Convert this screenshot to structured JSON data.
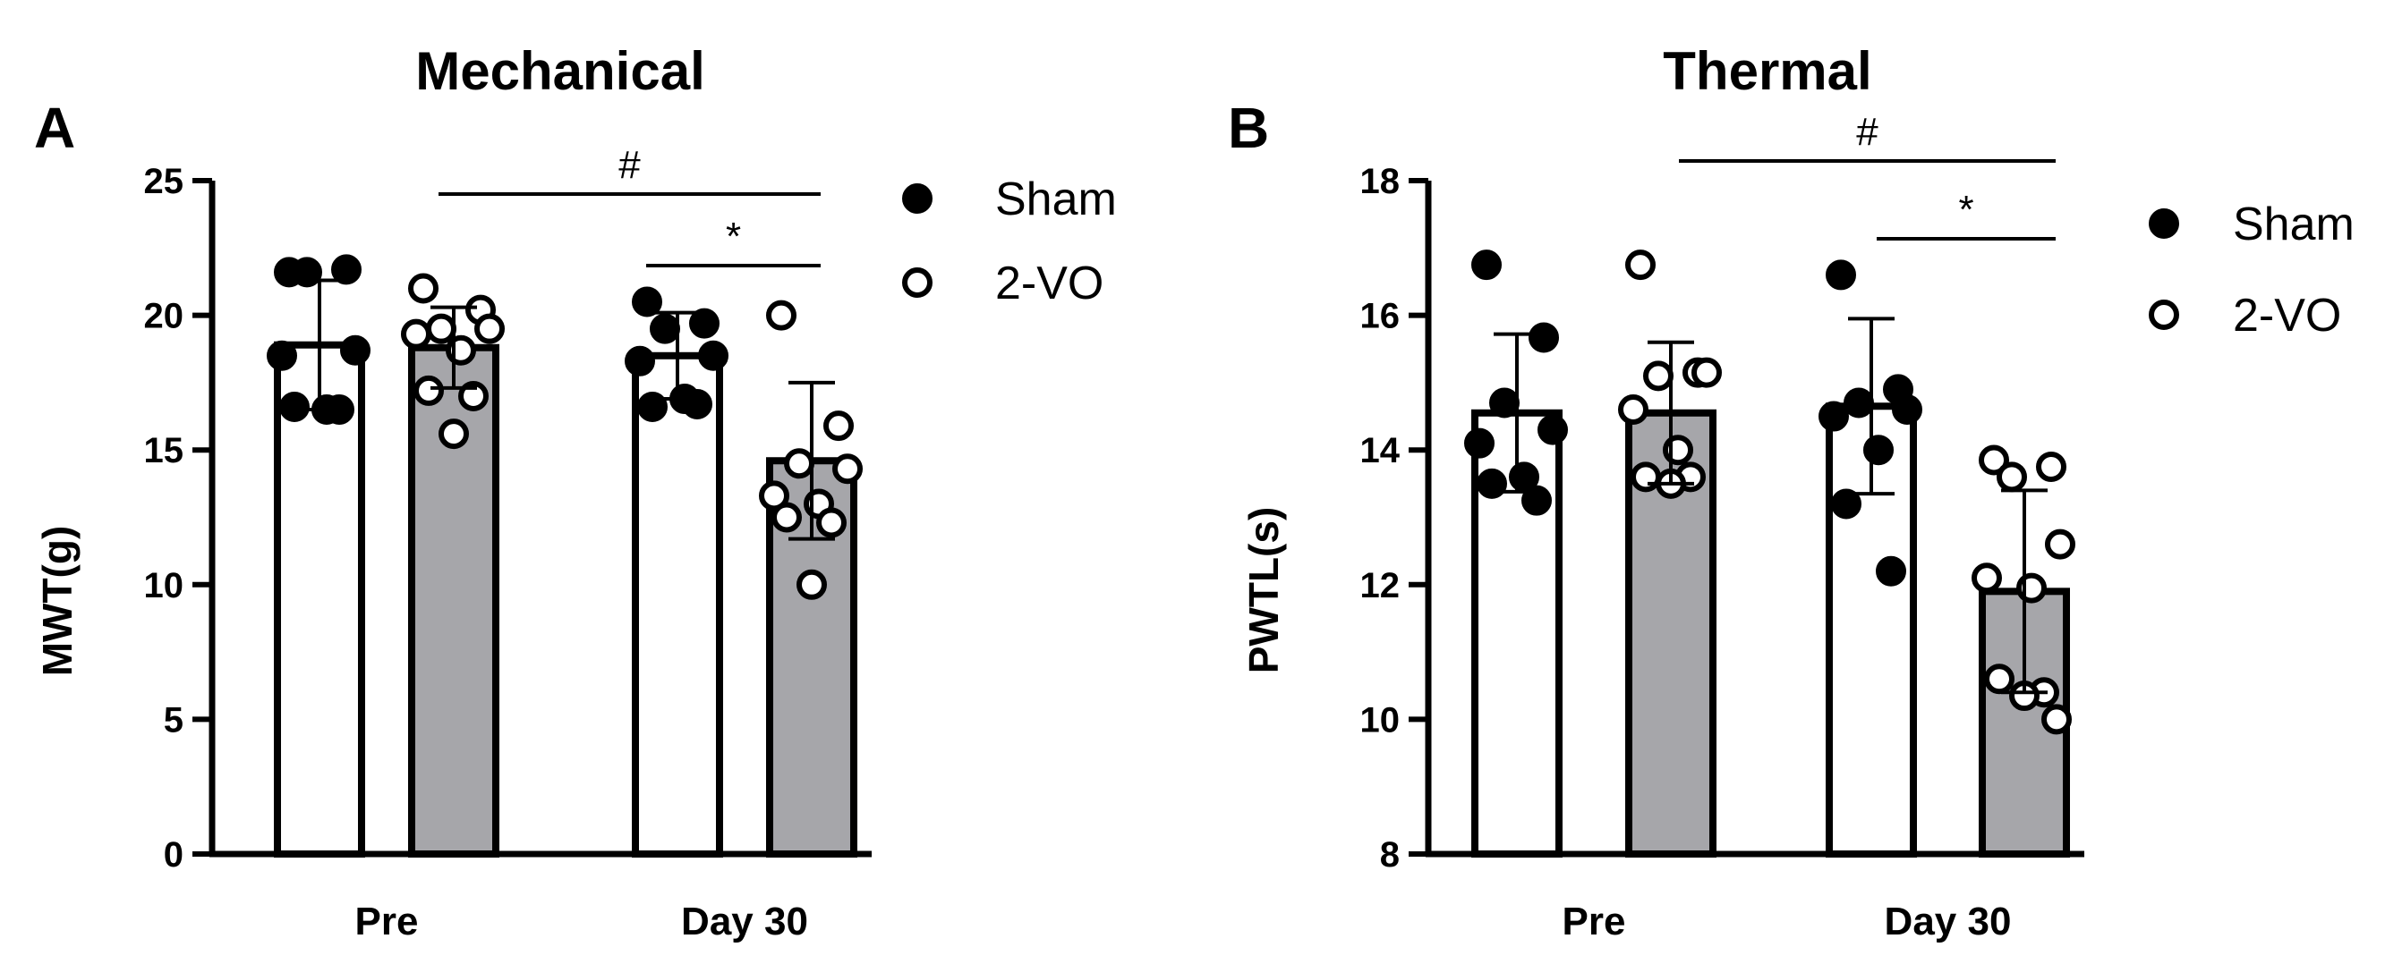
{
  "figure": {
    "legend": {
      "items": [
        {
          "label": "Sham",
          "marker": "filled-circle"
        },
        {
          "label": "2-VO",
          "marker": "open-circle"
        }
      ],
      "placement": "right"
    }
  },
  "colors": {
    "sham_bar": "#ffffff",
    "vo_bar": "#a6a6aa",
    "ink": "#000000"
  },
  "chart_data": [
    {
      "type": "bar",
      "panel": "A",
      "title": "Mechanical",
      "xlabel": "",
      "ylabel": "MWT(g)",
      "ylim": [
        0,
        25
      ],
      "yticks": [
        0,
        5,
        10,
        15,
        20,
        25
      ],
      "categories": [
        "Pre",
        "Day 30"
      ],
      "series": [
        {
          "name": "Sham",
          "values": [
            18.9,
            18.5
          ],
          "sd": [
            2.4,
            1.6
          ],
          "points": [
            [
              21.6,
              21.7,
              21.6,
              18.7,
              18.5,
              16.5,
              16.6,
              16.5
            ],
            [
              20.5,
              19.7,
              19.5,
              18.5,
              18.3,
              16.9,
              16.6,
              16.7
            ]
          ]
        },
        {
          "name": "2-VO",
          "values": [
            18.8,
            14.6
          ],
          "sd": [
            1.5,
            2.9
          ],
          "points": [
            [
              21.0,
              20.2,
              19.5,
              19.5,
              19.3,
              18.7,
              17.2,
              17.0,
              15.6
            ],
            [
              20.0,
              15.9,
              14.5,
              14.3,
              13.3,
              13.0,
              12.5,
              12.3,
              10.0
            ]
          ]
        }
      ],
      "significance": [
        {
          "label": "#",
          "from": "Pre 2-VO",
          "to": "Day 30 2-VO"
        },
        {
          "label": "*",
          "from": "Day 30 Sham",
          "to": "Day 30 2-VO"
        }
      ]
    },
    {
      "type": "bar",
      "panel": "B",
      "title": "Thermal",
      "xlabel": "",
      "ylabel": "PWTL(s)",
      "ylim": [
        8,
        18
      ],
      "yticks": [
        8,
        10,
        12,
        14,
        16,
        18
      ],
      "categories": [
        "Pre",
        "Day 30"
      ],
      "series": [
        {
          "name": "Sham",
          "values": [
            14.55,
            14.65
          ],
          "sd": [
            1.17,
            1.3
          ],
          "points": [
            [
              16.75,
              15.67,
              14.7,
              14.3,
              14.1,
              13.6,
              13.5,
              13.25
            ],
            [
              16.6,
              14.9,
              14.7,
              14.6,
              14.5,
              14.0,
              13.2,
              12.2
            ]
          ]
        },
        {
          "name": "2-VO",
          "values": [
            14.55,
            11.9
          ],
          "sd": [
            1.05,
            1.5
          ],
          "points": [
            [
              16.75,
              15.15,
              15.1,
              15.15,
              14.6,
              14.0,
              13.6,
              13.6,
              13.5
            ],
            [
              13.85,
              13.75,
              13.6,
              12.6,
              12.1,
              11.95,
              10.6,
              10.4,
              10.35,
              10.0
            ]
          ]
        }
      ],
      "significance": [
        {
          "label": "#",
          "from": "Pre 2-VO",
          "to": "Day 30 2-VO"
        },
        {
          "label": "*",
          "from": "Day 30 Sham",
          "to": "Day 30 2-VO"
        }
      ]
    }
  ]
}
